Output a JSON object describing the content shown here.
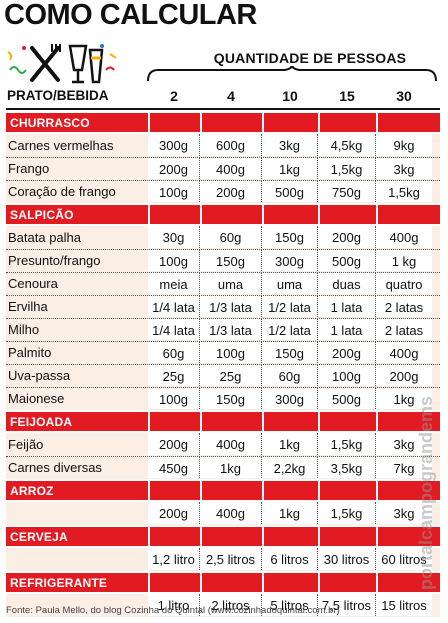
{
  "title": "COMO CALCULAR",
  "quantity_header": "QUANTIDADE DE PESSOAS",
  "dish_header": "PRATO/BEBIDA",
  "columns": [
    "2",
    "4",
    "10",
    "15",
    "30"
  ],
  "sections": [
    {
      "name": "CHURRASCO",
      "items": [
        {
          "name": "Carnes vermelhas",
          "values": [
            "300g",
            "600g",
            "3kg",
            "4,5kg",
            "9kg"
          ]
        },
        {
          "name": "Frango",
          "values": [
            "200g",
            "400g",
            "1kg",
            "1,5kg",
            "3kg"
          ]
        },
        {
          "name": "Coração de frango",
          "values": [
            "100g",
            "200g",
            "500g",
            "750g",
            "1,5kg"
          ]
        }
      ]
    },
    {
      "name": "SALPICÃO",
      "items": [
        {
          "name": "Batata palha",
          "values": [
            "30g",
            "60g",
            "150g",
            "200g",
            "400g"
          ]
        },
        {
          "name": "Presunto/frango",
          "values": [
            "100g",
            "150g",
            "300g",
            "500g",
            "1 kg"
          ]
        },
        {
          "name": "Cenoura",
          "values": [
            "meia",
            "uma",
            "uma",
            "duas",
            "quatro"
          ]
        },
        {
          "name": "Ervilha",
          "values": [
            "1/4 lata",
            "1/3 lata",
            "1/2 lata",
            "1 lata",
            "2 latas"
          ]
        },
        {
          "name": "Milho",
          "values": [
            "1/4 lata",
            "1/3 lata",
            "1/2 lata",
            "1 lata",
            "2 latas"
          ]
        },
        {
          "name": "Palmito",
          "values": [
            "60g",
            "100g",
            "150g",
            "200g",
            "400g"
          ]
        },
        {
          "name": "Uva-passa",
          "values": [
            "25g",
            "25g",
            "60g",
            "100g",
            "200g"
          ]
        },
        {
          "name": "Maionese",
          "values": [
            "100g",
            "150g",
            "300g",
            "500g",
            "1kg"
          ]
        }
      ]
    },
    {
      "name": "FEIJOADA",
      "items": [
        {
          "name": "Feijão",
          "values": [
            "200g",
            "400g",
            "1kg",
            "1,5kg",
            "3kg"
          ]
        },
        {
          "name": "Carnes diversas",
          "values": [
            "450g",
            "1kg",
            "2,2kg",
            "3,5kg",
            "7kg"
          ]
        }
      ]
    },
    {
      "name": "ARROZ",
      "items": [
        {
          "name": "",
          "values": [
            "200g",
            "400g",
            "1kg",
            "1,5kg",
            "3kg"
          ]
        }
      ]
    },
    {
      "name": "CERVEJA",
      "items": [
        {
          "name": "",
          "values": [
            "1,2 litro",
            "2,5 litros",
            "6 litros",
            "30 litros",
            "60 litros"
          ]
        }
      ]
    },
    {
      "name": "REFRIGERANTE",
      "items": [
        {
          "name": "",
          "values": [
            "1 litro",
            "2 litros",
            "5 litros",
            "7,5 litros",
            "15 litros"
          ]
        }
      ]
    }
  ],
  "source": "Fonte: Paula Mello, do blog Cozinha do Quintal (www.cozinhadoquintal.com.br)",
  "watermark": "portalcampograndems",
  "colors": {
    "accent": "#e21b23",
    "row_bg": "#fbeee5"
  },
  "icons": [
    "cutlery-icon",
    "glasses-icon",
    "confetti-icon"
  ]
}
